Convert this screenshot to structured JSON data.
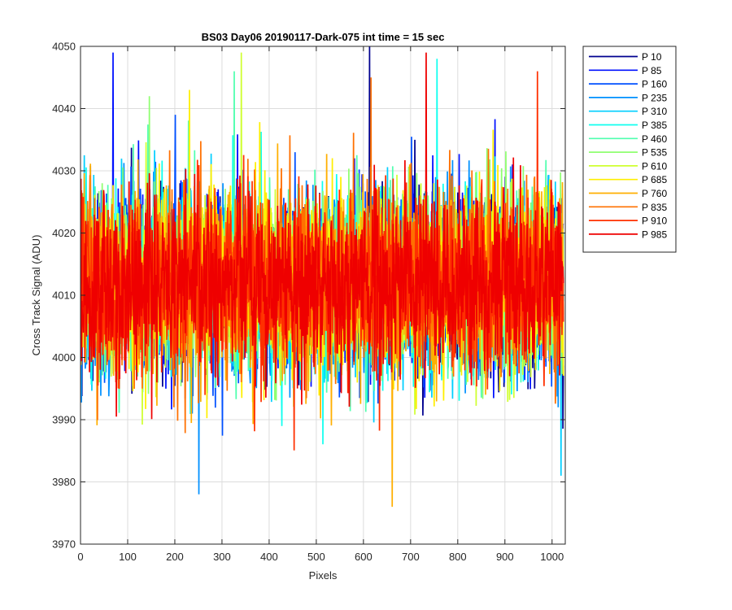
{
  "chart_data": {
    "type": "line",
    "title": "BS03 Day06 20190117-Dark-075 int time = 15 sec",
    "xlabel": "Pixels",
    "ylabel": "Cross Track Signal (ADU)",
    "xlim": [
      0,
      1028
    ],
    "ylim": [
      3970,
      4050
    ],
    "xticks": [
      0,
      100,
      200,
      300,
      400,
      500,
      600,
      700,
      800,
      900,
      1000
    ],
    "yticks": [
      3970,
      3980,
      3990,
      4000,
      4010,
      4020,
      4030,
      4040,
      4050
    ],
    "grid": true,
    "legend_position": "outside-top-right",
    "n_points_per_series": 1024,
    "series_mean": 4012,
    "series": [
      {
        "name": "P 10",
        "color": "#00008f",
        "spike": {
          "x": 612,
          "y": 4050
        }
      },
      {
        "name": "P 85",
        "color": "#0010ff",
        "spike": {
          "x": 68,
          "y": 4049
        }
      },
      {
        "name": "P 160",
        "color": "#0050ff",
        "spike": {
          "x": 200,
          "y": 4039
        }
      },
      {
        "name": "P 235",
        "color": "#0090ff",
        "spike": {
          "x": 250,
          "y": 3978
        }
      },
      {
        "name": "P 310",
        "color": "#00cfff",
        "spike": {
          "x": 1018,
          "y": 3981
        }
      },
      {
        "name": "P 385",
        "color": "#10ffef",
        "spike": {
          "x": 755,
          "y": 4048
        }
      },
      {
        "name": "P 460",
        "color": "#50ffaf",
        "spike": {
          "x": 325,
          "y": 4046
        }
      },
      {
        "name": "P 535",
        "color": "#8fff70",
        "spike": {
          "x": 145,
          "y": 4042
        }
      },
      {
        "name": "P 610",
        "color": "#cfff30",
        "spike": {
          "x": 340,
          "y": 4049
        }
      },
      {
        "name": "P 685",
        "color": "#ffef00",
        "spike": {
          "x": 230,
          "y": 4043
        }
      },
      {
        "name": "P 760",
        "color": "#ffaf00",
        "spike": {
          "x": 660,
          "y": 3976
        }
      },
      {
        "name": "P 835",
        "color": "#ff7000",
        "spike": {
          "x": 615,
          "y": 4045
        }
      },
      {
        "name": "P 910",
        "color": "#ff3000",
        "spike": {
          "x": 968,
          "y": 4046
        }
      },
      {
        "name": "P 985",
        "color": "#ef0000",
        "spike": {
          "x": 732,
          "y": 4049
        }
      }
    ]
  }
}
